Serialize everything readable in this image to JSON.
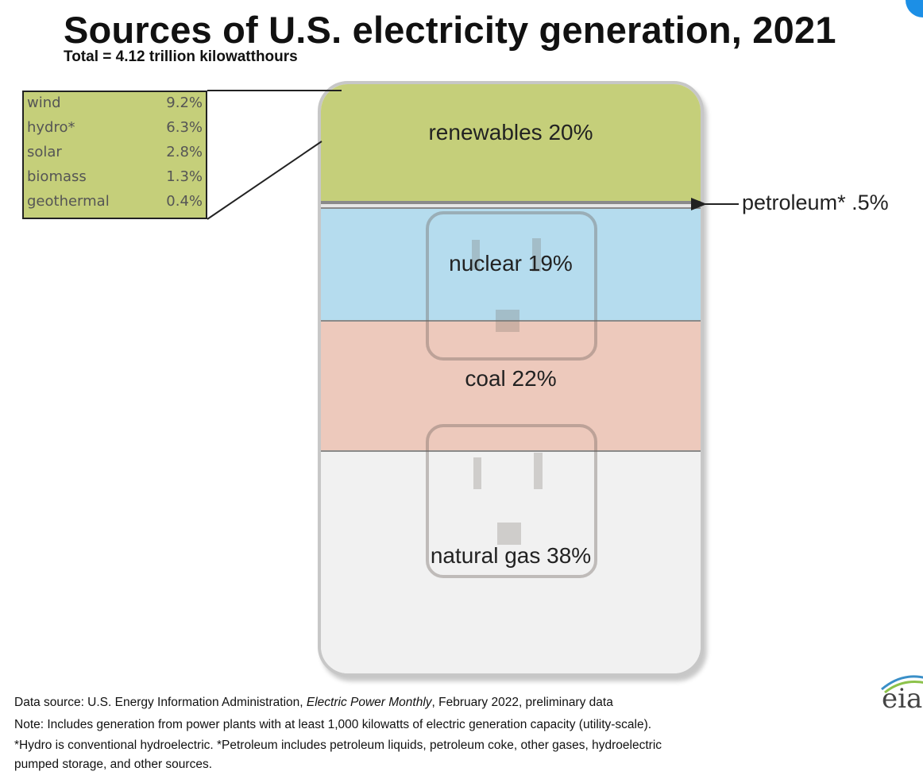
{
  "title": "Sources of U.S. electricity generation, 2021",
  "subtitle": "Total = 4.12 trillion kilowatthours",
  "chart_data": {
    "type": "bar",
    "stacked": true,
    "unit": "percent of total generation",
    "categories": [
      "renewables",
      "petroleum*",
      "nuclear",
      "coal",
      "natural gas"
    ],
    "values": [
      20,
      0.5,
      19,
      22,
      38
    ],
    "labels": [
      "renewables 20%",
      "petroleum* .5%",
      "nuclear 19%",
      "coal 22%",
      "natural gas 38%"
    ],
    "colors": [
      "#c5cf7a",
      "#e6e6e6",
      "#b5dcee",
      "#edc9bc",
      "#f1f1f1"
    ],
    "renewables_breakdown": [
      {
        "name": "wind",
        "value": 9.2,
        "label": "9.2%"
      },
      {
        "name": "hydro*",
        "value": 6.3,
        "label": "6.3%"
      },
      {
        "name": "solar",
        "value": 2.8,
        "label": "2.8%"
      },
      {
        "name": "biomass",
        "value": 1.3,
        "label": "1.3%"
      },
      {
        "name": "geothermal",
        "value": 0.4,
        "label": "0.4%"
      }
    ]
  },
  "footer": {
    "line1_prefix": "Data source: U.S. Energy Information Administration, ",
    "line1_italic": "Electric Power Monthly",
    "line1_suffix": ", February 2022, preliminary data",
    "line2": "Note: Includes generation from power plants with at least 1,000 kilowatts of electric generation capacity (utility-scale).",
    "line3": "*Hydro is conventional hydroelectric. *Petroleum includes petroleum liquids, petroleum coke, other gases, hydroelectric",
    "line4": "pumped storage, and other sources."
  },
  "logo_text": "eia"
}
